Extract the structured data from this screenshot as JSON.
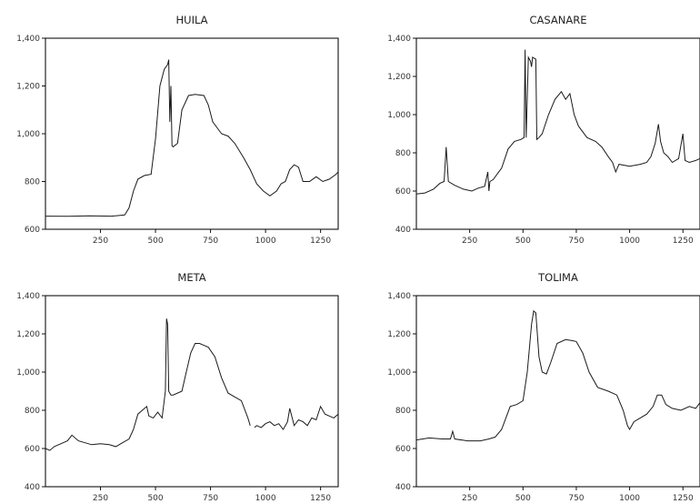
{
  "chart_data": [
    {
      "type": "line",
      "title": "HUILA",
      "xlim": [
        0,
        1330
      ],
      "ylim": [
        600,
        1400
      ],
      "xticks": [
        250,
        500,
        750,
        1000,
        1250
      ],
      "xtick_labels": [
        "250",
        "500",
        "750",
        "1000",
        "1250"
      ],
      "yticks": [
        600,
        800,
        1000,
        1200,
        1400
      ],
      "ytick_labels": [
        "600",
        "800",
        "1,000",
        "1,200",
        "1,400"
      ],
      "series": [
        {
          "x": [
            0,
            100,
            200,
            300,
            360,
            380,
            400,
            420,
            450,
            480,
            500,
            520,
            540,
            555,
            560,
            565,
            570,
            575,
            580,
            600,
            620,
            650,
            680,
            720,
            740,
            760,
            800,
            830,
            860,
            900,
            930,
            960,
            990,
            1020,
            1050,
            1070,
            1090,
            1110,
            1130,
            1150,
            1170,
            1200,
            1230,
            1260,
            1290,
            1320,
            1330
          ],
          "y": [
            655,
            654,
            656,
            655,
            660,
            690,
            760,
            810,
            825,
            830,
            980,
            1200,
            1270,
            1290,
            1310,
            1050,
            1200,
            950,
            945,
            960,
            1100,
            1160,
            1165,
            1160,
            1120,
            1050,
            1000,
            990,
            960,
            900,
            850,
            790,
            760,
            740,
            760,
            790,
            800,
            850,
            870,
            860,
            800,
            800,
            820,
            800,
            810,
            830,
            840
          ]
        }
      ]
    },
    {
      "type": "line",
      "title": "CASANARE",
      "xlim": [
        0,
        1330
      ],
      "ylim": [
        400,
        1400
      ],
      "xticks": [
        250,
        500,
        750,
        1000,
        1250
      ],
      "xtick_labels": [
        "250",
        "500",
        "750",
        "1000",
        "1250"
      ],
      "yticks": [
        400,
        600,
        800,
        1000,
        1200,
        1400
      ],
      "ytick_labels": [
        "400",
        "600",
        "800",
        "1,000",
        "1,200",
        "1,400"
      ],
      "series": [
        {
          "x": [
            0,
            40,
            80,
            110,
            130,
            140,
            150,
            180,
            220,
            260,
            290,
            320,
            335,
            340,
            345,
            360,
            380,
            400,
            430,
            460,
            490,
            505,
            510,
            515,
            525,
            535,
            540,
            545,
            560,
            565,
            575,
            590,
            620,
            650,
            680,
            700,
            720,
            740,
            760,
            800,
            840,
            870,
            900,
            920,
            935,
            950,
            1000,
            1050,
            1080,
            1100,
            1120,
            1135,
            1145,
            1160,
            1180,
            1200,
            1230,
            1250,
            1260,
            1280,
            1310,
            1330
          ],
          "y": [
            585,
            590,
            610,
            640,
            650,
            830,
            650,
            630,
            610,
            600,
            615,
            625,
            700,
            600,
            650,
            660,
            690,
            720,
            820,
            860,
            870,
            880,
            1340,
            880,
            1300,
            1280,
            1250,
            1300,
            1290,
            870,
            880,
            900,
            1000,
            1080,
            1120,
            1080,
            1110,
            1000,
            940,
            880,
            860,
            830,
            780,
            750,
            700,
            740,
            730,
            740,
            750,
            780,
            850,
            950,
            860,
            800,
            780,
            750,
            770,
            900,
            760,
            750,
            760,
            770
          ]
        }
      ]
    },
    {
      "type": "line",
      "title": "META",
      "xlim": [
        0,
        1330
      ],
      "ylim": [
        400,
        1400
      ],
      "xticks": [
        250,
        500,
        750,
        1000,
        1250
      ],
      "xtick_labels": [
        "250",
        "500",
        "750",
        "1000",
        "1250"
      ],
      "yticks": [
        400,
        600,
        800,
        1000,
        1200,
        1400
      ],
      "ytick_labels": [
        "400",
        "600",
        "800",
        "1,000",
        "1,200",
        "1,400"
      ],
      "series": [
        {
          "x": [
            0,
            20,
            40,
            60,
            80,
            100,
            120,
            150,
            180,
            210,
            250,
            290,
            320,
            350,
            380,
            400,
            420,
            440,
            460,
            470,
            490,
            510,
            530,
            545,
            550,
            555,
            560,
            570,
            580,
            620,
            640,
            660,
            680,
            700,
            720,
            740,
            770,
            800,
            830,
            860,
            890,
            920,
            930,
            null,
            950,
            960,
            980,
            1000,
            1020,
            1040,
            1060,
            1080,
            1100,
            1110,
            1130,
            1150,
            1170,
            1190,
            1210,
            1230,
            1250,
            1270,
            1290,
            1310,
            1330
          ],
          "y": [
            600,
            590,
            610,
            620,
            630,
            640,
            670,
            640,
            630,
            620,
            625,
            620,
            610,
            630,
            650,
            700,
            780,
            800,
            820,
            770,
            760,
            790,
            760,
            900,
            1280,
            1250,
            900,
            880,
            880,
            900,
            1000,
            1100,
            1150,
            1150,
            1140,
            1130,
            1080,
            970,
            890,
            870,
            850,
            760,
            720,
            null,
            710,
            720,
            710,
            730,
            740,
            720,
            730,
            700,
            740,
            810,
            720,
            750,
            740,
            720,
            760,
            750,
            820,
            780,
            770,
            760,
            780
          ]
        }
      ]
    },
    {
      "type": "line",
      "title": "TOLIMA",
      "xlim": [
        0,
        1330
      ],
      "ylim": [
        400,
        1400
      ],
      "xticks": [
        250,
        500,
        750,
        1000,
        1250
      ],
      "xtick_labels": [
        "250",
        "500",
        "750",
        "1000",
        "1250"
      ],
      "yticks": [
        400,
        600,
        800,
        1000,
        1200,
        1400
      ],
      "ytick_labels": [
        "400",
        "600",
        "800",
        "1,000",
        "1,200",
        "1,400"
      ],
      "series": [
        {
          "x": [
            0,
            60,
            120,
            160,
            170,
            180,
            240,
            300,
            340,
            370,
            400,
            420,
            440,
            470,
            500,
            520,
            540,
            550,
            560,
            575,
            590,
            610,
            630,
            660,
            700,
            730,
            750,
            780,
            810,
            850,
            900,
            940,
            970,
            990,
            1000,
            1020,
            1050,
            1080,
            1110,
            1130,
            1150,
            1170,
            1200,
            1240,
            1280,
            1310,
            1330
          ],
          "y": [
            645,
            655,
            650,
            650,
            690,
            650,
            640,
            640,
            650,
            660,
            700,
            760,
            820,
            830,
            850,
            1000,
            1250,
            1320,
            1310,
            1080,
            1000,
            990,
            1050,
            1150,
            1170,
            1165,
            1160,
            1100,
            1000,
            920,
            900,
            880,
            800,
            720,
            700,
            740,
            760,
            780,
            820,
            880,
            880,
            830,
            810,
            800,
            820,
            810,
            840
          ]
        }
      ]
    }
  ]
}
